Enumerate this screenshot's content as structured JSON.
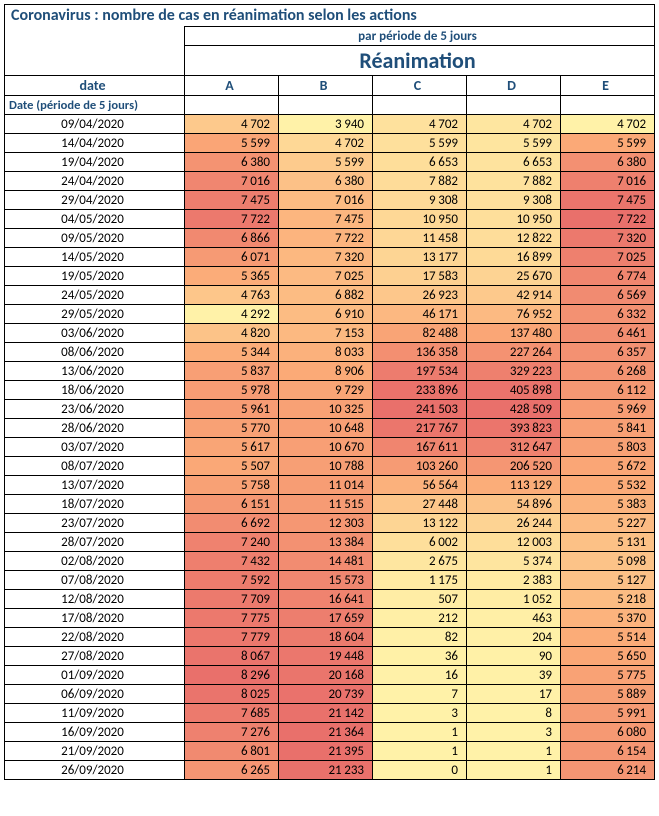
{
  "title": "Coronavirus : nombre de cas en réanimation selon les actions",
  "subhead": "par période de 5 jours",
  "bighead": "Réanimation",
  "date_col_header": "date",
  "date_subheader": "Date (période de 5 jours)",
  "columns": [
    "A",
    "B",
    "C",
    "D",
    "E"
  ],
  "col_widths": {
    "date": 180,
    "val": 94
  },
  "colors": {
    "title": "#1f4e79",
    "border": "#000000",
    "palette_min": "#fff2a8",
    "palette_mid": "#fbaa77",
    "palette_max": "#e9706b"
  },
  "rows": [
    {
      "date": "09/04/2020",
      "v": [
        4702,
        3940,
        4702,
        4702,
        4702
      ]
    },
    {
      "date": "14/04/2020",
      "v": [
        5599,
        4702,
        5599,
        5599,
        5599
      ]
    },
    {
      "date": "19/04/2020",
      "v": [
        6380,
        5599,
        6653,
        6653,
        6380
      ]
    },
    {
      "date": "24/04/2020",
      "v": [
        7016,
        6380,
        7882,
        7882,
        7016
      ]
    },
    {
      "date": "29/04/2020",
      "v": [
        7475,
        7016,
        9308,
        9308,
        7475
      ]
    },
    {
      "date": "04/05/2020",
      "v": [
        7722,
        7475,
        10950,
        10950,
        7722
      ]
    },
    {
      "date": "09/05/2020",
      "v": [
        6866,
        7722,
        11458,
        12822,
        7320
      ]
    },
    {
      "date": "14/05/2020",
      "v": [
        6071,
        7320,
        13177,
        16899,
        7025
      ]
    },
    {
      "date": "19/05/2020",
      "v": [
        5365,
        7025,
        17583,
        25670,
        6774
      ]
    },
    {
      "date": "24/05/2020",
      "v": [
        4763,
        6882,
        26923,
        42914,
        6569
      ]
    },
    {
      "date": "29/05/2020",
      "v": [
        4292,
        6910,
        46171,
        76952,
        6332
      ]
    },
    {
      "date": "03/06/2020",
      "v": [
        4820,
        7153,
        82488,
        137480,
        6461
      ]
    },
    {
      "date": "08/06/2020",
      "v": [
        5344,
        8033,
        136358,
        227264,
        6357
      ]
    },
    {
      "date": "13/06/2020",
      "v": [
        5837,
        8906,
        197534,
        329223,
        6268
      ]
    },
    {
      "date": "18/06/2020",
      "v": [
        5978,
        9729,
        233896,
        405898,
        6112
      ]
    },
    {
      "date": "23/06/2020",
      "v": [
        5961,
        10325,
        241503,
        428509,
        5969
      ]
    },
    {
      "date": "28/06/2020",
      "v": [
        5770,
        10648,
        217767,
        393823,
        5841
      ]
    },
    {
      "date": "03/07/2020",
      "v": [
        5617,
        10670,
        167611,
        312647,
        5803
      ]
    },
    {
      "date": "08/07/2020",
      "v": [
        5507,
        10788,
        103260,
        206520,
        5672
      ]
    },
    {
      "date": "13/07/2020",
      "v": [
        5758,
        11014,
        56564,
        113129,
        5532
      ]
    },
    {
      "date": "18/07/2020",
      "v": [
        6151,
        11515,
        27448,
        54896,
        5383
      ]
    },
    {
      "date": "23/07/2020",
      "v": [
        6692,
        12303,
        13122,
        26244,
        5227
      ]
    },
    {
      "date": "28/07/2020",
      "v": [
        7240,
        13384,
        6002,
        12003,
        5131
      ]
    },
    {
      "date": "02/08/2020",
      "v": [
        7432,
        14481,
        2675,
        5374,
        5098
      ]
    },
    {
      "date": "07/08/2020",
      "v": [
        7592,
        15573,
        1175,
        2383,
        5127
      ]
    },
    {
      "date": "12/08/2020",
      "v": [
        7709,
        16641,
        507,
        1052,
        5218
      ]
    },
    {
      "date": "17/08/2020",
      "v": [
        7775,
        17659,
        212,
        463,
        5370
      ]
    },
    {
      "date": "22/08/2020",
      "v": [
        7779,
        18604,
        82,
        204,
        5514
      ]
    },
    {
      "date": "27/08/2020",
      "v": [
        8067,
        19448,
        36,
        90,
        5650
      ]
    },
    {
      "date": "01/09/2020",
      "v": [
        8296,
        20168,
        16,
        39,
        5775
      ]
    },
    {
      "date": "06/09/2020",
      "v": [
        8025,
        20739,
        7,
        17,
        5889
      ]
    },
    {
      "date": "11/09/2020",
      "v": [
        7685,
        21142,
        3,
        8,
        5991
      ]
    },
    {
      "date": "16/09/2020",
      "v": [
        7276,
        21364,
        1,
        3,
        6080
      ]
    },
    {
      "date": "21/09/2020",
      "v": [
        6801,
        21395,
        1,
        1,
        6154
      ]
    },
    {
      "date": "26/09/2020",
      "v": [
        6265,
        21233,
        0,
        1,
        6214
      ]
    }
  ]
}
